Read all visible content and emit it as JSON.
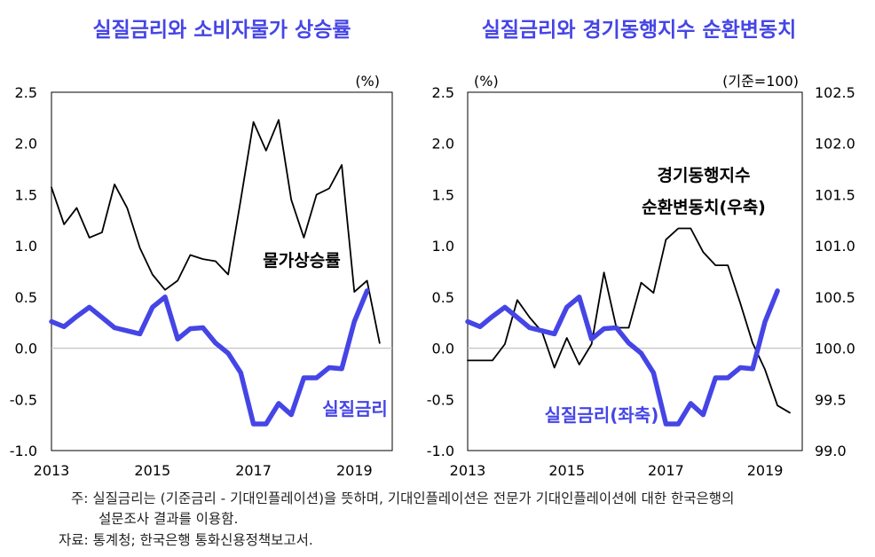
{
  "chart_data": [
    {
      "type": "line",
      "title": "실질금리와 소비자물가 상승률",
      "unit_left": "(%)",
      "ylim": [
        -1.0,
        2.5
      ],
      "yticks": [
        "2.5",
        "2.0",
        "1.5",
        "1.0",
        "0.5",
        "0.0",
        "-0.5",
        "-1.0"
      ],
      "xlim": [
        2013,
        2019.75
      ],
      "xticks": [
        "2013",
        "2015",
        "2017",
        "2019"
      ],
      "annotations": [
        "물가상승률",
        "실질금리"
      ],
      "series": [
        {
          "name": "물가상승률",
          "color": "#000000",
          "x": [
            2013.0,
            2013.25,
            2013.5,
            2013.75,
            2014.0,
            2014.25,
            2014.5,
            2014.75,
            2015.0,
            2015.25,
            2015.5,
            2015.75,
            2016.0,
            2016.25,
            2016.5,
            2016.75,
            2017.0,
            2017.25,
            2017.5,
            2017.75,
            2018.0,
            2018.25,
            2018.5,
            2018.75,
            2019.0,
            2019.25,
            2019.5
          ],
          "y": [
            1.57,
            1.21,
            1.37,
            1.08,
            1.13,
            1.6,
            1.37,
            0.98,
            0.72,
            0.57,
            0.66,
            0.91,
            0.87,
            0.85,
            0.72,
            1.45,
            2.21,
            1.93,
            2.23,
            1.45,
            1.08,
            1.5,
            1.56,
            1.79,
            0.55,
            0.66,
            0.05
          ]
        },
        {
          "name": "실질금리",
          "color": "#4545e6",
          "x": [
            2013.0,
            2013.25,
            2013.5,
            2013.75,
            2014.0,
            2014.25,
            2014.5,
            2014.75,
            2015.0,
            2015.25,
            2015.5,
            2015.75,
            2016.0,
            2016.25,
            2016.5,
            2016.75,
            2017.0,
            2017.25,
            2017.5,
            2017.75,
            2018.0,
            2018.25,
            2018.5,
            2018.75,
            2019.0,
            2019.25
          ],
          "y": [
            0.26,
            0.21,
            0.31,
            0.4,
            0.3,
            0.2,
            0.17,
            0.14,
            0.4,
            0.5,
            0.09,
            0.19,
            0.2,
            0.05,
            -0.05,
            -0.24,
            -0.74,
            -0.74,
            -0.54,
            -0.65,
            -0.29,
            -0.29,
            -0.19,
            -0.2,
            0.26,
            0.56
          ]
        }
      ]
    },
    {
      "type": "line",
      "title": "실질금리와 경기동행지수 순환변동치",
      "unit_left": "(%)",
      "unit_right": "(기준=100)",
      "ylim": [
        -1.0,
        2.5
      ],
      "ylim_right": [
        99.0,
        102.5
      ],
      "yticks": [
        "2.5",
        "2.0",
        "1.5",
        "1.0",
        "0.5",
        "0.0",
        "-0.5",
        "-1.0"
      ],
      "yticks_right": [
        "102.5",
        "102.0",
        "101.5",
        "101.0",
        "100.5",
        "100.0",
        "99.5",
        "99.0"
      ],
      "xlim": [
        2013,
        2019.75
      ],
      "xticks": [
        "2013",
        "2015",
        "2017",
        "2019"
      ],
      "annotations": [
        "경기동행지수",
        "순환변동치(우축)",
        "실질금리(좌축)"
      ],
      "series": [
        {
          "name": "경기동행지수 순환변동치",
          "axis": "right",
          "color": "#000000",
          "x": [
            2013.0,
            2013.25,
            2013.5,
            2013.75,
            2014.0,
            2014.25,
            2014.5,
            2014.75,
            2015.0,
            2015.25,
            2015.5,
            2015.75,
            2016.0,
            2016.25,
            2016.5,
            2016.75,
            2017.0,
            2017.25,
            2017.5,
            2017.75,
            2018.0,
            2018.25,
            2018.5,
            2018.75,
            2019.0,
            2019.25,
            2019.5
          ],
          "y": [
            99.88,
            99.88,
            99.88,
            100.04,
            100.47,
            100.3,
            100.16,
            99.81,
            100.1,
            99.84,
            100.04,
            100.74,
            100.2,
            100.2,
            100.64,
            100.54,
            101.06,
            101.17,
            101.17,
            100.94,
            100.81,
            100.81,
            100.44,
            100.05,
            99.79,
            99.44,
            99.37
          ]
        },
        {
          "name": "실질금리",
          "axis": "left",
          "color": "#4545e6",
          "x": [
            2013.0,
            2013.25,
            2013.5,
            2013.75,
            2014.0,
            2014.25,
            2014.5,
            2014.75,
            2015.0,
            2015.25,
            2015.5,
            2015.75,
            2016.0,
            2016.25,
            2016.5,
            2016.75,
            2017.0,
            2017.25,
            2017.5,
            2017.75,
            2018.0,
            2018.25,
            2018.5,
            2018.75,
            2019.0,
            2019.25
          ],
          "y": [
            0.26,
            0.21,
            0.31,
            0.4,
            0.3,
            0.2,
            0.17,
            0.14,
            0.4,
            0.5,
            0.09,
            0.19,
            0.2,
            0.05,
            -0.05,
            -0.24,
            -0.74,
            -0.74,
            -0.54,
            -0.65,
            -0.29,
            -0.29,
            -0.19,
            -0.2,
            0.26,
            0.56
          ]
        }
      ]
    }
  ],
  "notes": {
    "note_line1": "주: 실질금리는 (기준금리 - 기대인플레이션)을 뜻하며, 기대인플레이션은 전문가 기대인플레이션에 대한 한국은행의",
    "note_line2": "설문조사 결과를 이용함.",
    "source": "자료: 통계청; 한국은행 통화신용정책보고서."
  }
}
